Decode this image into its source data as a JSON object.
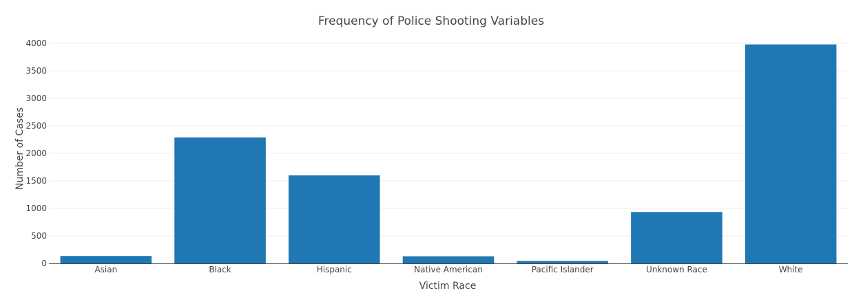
{
  "chart_data": {
    "type": "bar",
    "title": "Frequency of Police Shooting Variables",
    "xlabel": "Victim Race",
    "ylabel": "Number of Cases",
    "categories": [
      "Asian",
      "Black",
      "Hispanic",
      "Native American",
      "Pacific Islander",
      "Unknown Race",
      "White"
    ],
    "values": [
      135,
      2290,
      1600,
      130,
      45,
      935,
      3980
    ],
    "ylim": [
      0,
      4000
    ],
    "yticks": [
      0,
      500,
      1000,
      1500,
      2000,
      2500,
      3000,
      3500,
      4000
    ],
    "grid": true,
    "bar_color": "#1f77b4",
    "grid_color": "#eeeeee",
    "axis_color": "#444444",
    "legend": false
  }
}
